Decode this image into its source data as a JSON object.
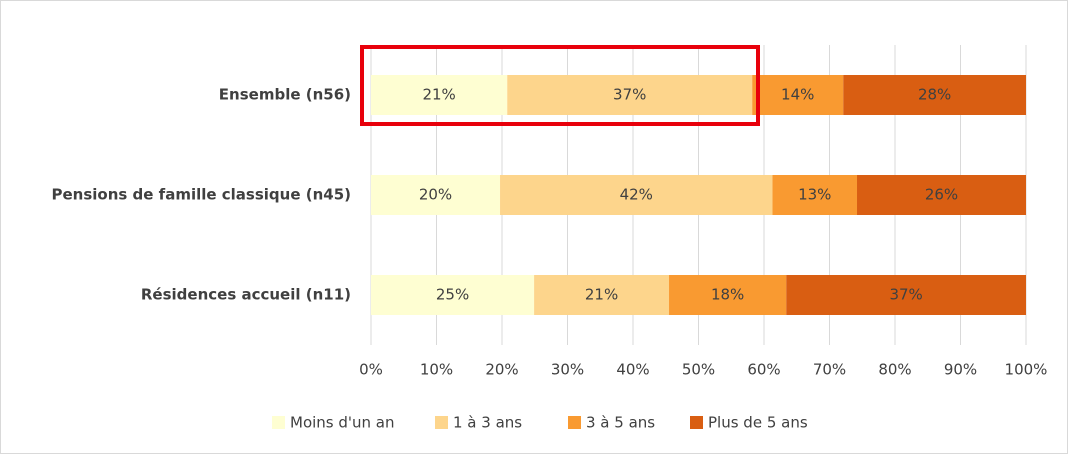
{
  "chart_data": {
    "type": "stacked-bar-horizontal",
    "categories": [
      "Ensemble (n56)",
      "Pensions de famille classique (n45)",
      "Résidences accueil (n11)"
    ],
    "series": [
      {
        "name": "Moins d'un an",
        "color": "#fefed2",
        "values": [
          20.8,
          19.7,
          24.9
        ],
        "value_labels": [
          "21%",
          "20%",
          "25%"
        ]
      },
      {
        "name": "1 à 3 ans",
        "color": "#fdd58c",
        "values": [
          37.4,
          41.6,
          20.6
        ],
        "value_labels": [
          "37%",
          "42%",
          "21%"
        ]
      },
      {
        "name": "3 à 5 ans",
        "color": "#f99a31",
        "values": [
          13.9,
          12.9,
          17.9
        ],
        "value_labels": [
          "14%",
          "13%",
          "18%"
        ]
      },
      {
        "name": "Plus de 5 ans",
        "color": "#d95e12",
        "values": [
          27.9,
          25.8,
          36.6
        ],
        "value_labels": [
          "28%",
          "26%",
          "37%"
        ]
      }
    ],
    "xlim": [
      0,
      100
    ],
    "xticks": [
      {
        "value": 0,
        "label": "0%"
      },
      {
        "value": 10,
        "label": "10%"
      },
      {
        "value": 20,
        "label": "20%"
      },
      {
        "value": 30,
        "label": "30%"
      },
      {
        "value": 40,
        "label": "40%"
      },
      {
        "value": 50,
        "label": "50%"
      },
      {
        "value": 60,
        "label": "60%"
      },
      {
        "value": 70,
        "label": "70%"
      },
      {
        "value": 80,
        "label": "80%"
      },
      {
        "value": 90,
        "label": "90%"
      },
      {
        "value": 100,
        "label": "100%"
      }
    ],
    "grid": true,
    "legend": "bottom"
  }
}
